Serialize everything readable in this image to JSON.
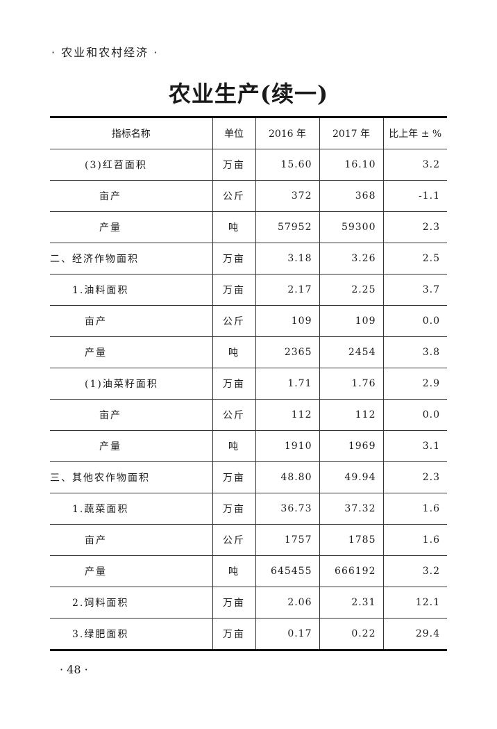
{
  "section_header": "· 农业和农村经济 ·",
  "title": "农业生产(续一)",
  "table": {
    "headers": [
      "指标名称",
      "单位",
      "2016 年",
      "2017 年",
      "比上年 ± %"
    ],
    "rows": [
      {
        "level": 2,
        "name": "(3)红苕面积",
        "unit": "万亩",
        "y2016": "15.60",
        "y2017": "16.10",
        "change": "3.2"
      },
      {
        "level": 3,
        "name": "亩产",
        "unit": "公斤",
        "y2016": "372",
        "y2017": "368",
        "change": "-1.1"
      },
      {
        "level": 3,
        "name": "产量",
        "unit": "吨",
        "y2016": "57952",
        "y2017": "59300",
        "change": "2.3"
      },
      {
        "level": 0,
        "name": "二、经济作物面积",
        "unit": "万亩",
        "y2016": "3.18",
        "y2017": "3.26",
        "change": "2.5"
      },
      {
        "level": 1,
        "name": "1.油料面积",
        "unit": "万亩",
        "y2016": "2.17",
        "y2017": "2.25",
        "change": "3.7"
      },
      {
        "level": 2,
        "name": "亩产",
        "unit": "公斤",
        "y2016": "109",
        "y2017": "109",
        "change": "0.0"
      },
      {
        "level": 2,
        "name": "产量",
        "unit": "吨",
        "y2016": "2365",
        "y2017": "2454",
        "change": "3.8"
      },
      {
        "level": 2,
        "name": "(1)油菜籽面积",
        "unit": "万亩",
        "y2016": "1.71",
        "y2017": "1.76",
        "change": "2.9"
      },
      {
        "level": 3,
        "name": "亩产",
        "unit": "公斤",
        "y2016": "112",
        "y2017": "112",
        "change": "0.0"
      },
      {
        "level": 3,
        "name": "产量",
        "unit": "吨",
        "y2016": "1910",
        "y2017": "1969",
        "change": "3.1"
      },
      {
        "level": 0,
        "name": "三、其他农作物面积",
        "unit": "万亩",
        "y2016": "48.80",
        "y2017": "49.94",
        "change": "2.3"
      },
      {
        "level": 1,
        "name": "1.蔬菜面积",
        "unit": "万亩",
        "y2016": "36.73",
        "y2017": "37.32",
        "change": "1.6"
      },
      {
        "level": 2,
        "name": "亩产",
        "unit": "公斤",
        "y2016": "1757",
        "y2017": "1785",
        "change": "1.6"
      },
      {
        "level": 2,
        "name": "产量",
        "unit": "吨",
        "y2016": "645455",
        "y2017": "666192",
        "change": "3.2"
      },
      {
        "level": 1,
        "name": "2.饲料面积",
        "unit": "万亩",
        "y2016": "2.06",
        "y2017": "2.31",
        "change": "12.1"
      },
      {
        "level": 1,
        "name": "3.绿肥面积",
        "unit": "万亩",
        "y2016": "0.17",
        "y2017": "0.22",
        "change": "29.4"
      }
    ]
  },
  "page_number": "· 48 ·"
}
